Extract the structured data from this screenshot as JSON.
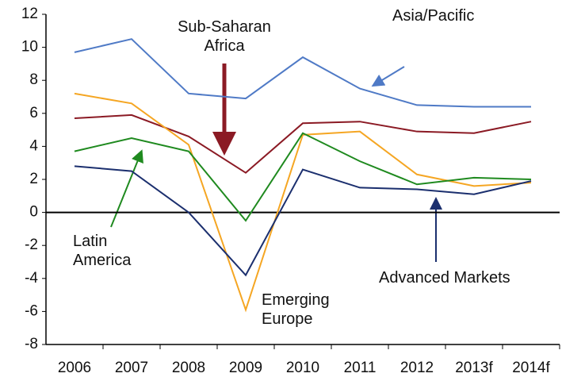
{
  "chart_data": {
    "type": "line",
    "categories": [
      "2006",
      "2007",
      "2008",
      "2009",
      "2010",
      "2011",
      "2012",
      "2013f",
      "2014f"
    ],
    "series": [
      {
        "name": "Asia/Pacific",
        "color": "#4f7ac6",
        "values": [
          9.7,
          10.5,
          7.2,
          6.9,
          9.4,
          7.5,
          6.5,
          6.4,
          6.4
        ]
      },
      {
        "name": "Sub-Saharan Africa",
        "color": "#8b1a24",
        "values": [
          5.7,
          5.9,
          4.6,
          2.4,
          5.4,
          5.5,
          4.9,
          4.8,
          5.5
        ]
      },
      {
        "name": "Emerging Europe",
        "color": "#f5a623",
        "values": [
          7.2,
          6.6,
          4.1,
          -5.9,
          4.7,
          4.9,
          2.3,
          1.6,
          1.8
        ]
      },
      {
        "name": "Latin America",
        "color": "#1f8a1f",
        "values": [
          3.7,
          4.5,
          3.7,
          -0.5,
          4.8,
          3.1,
          1.7,
          2.1,
          2.0
        ]
      },
      {
        "name": "Advanced Markets",
        "color": "#1b2f6e",
        "values": [
          2.8,
          2.5,
          0.0,
          -3.8,
          2.6,
          1.5,
          1.4,
          1.1,
          1.9
        ]
      }
    ],
    "ylim": [
      -8,
      12
    ],
    "yticks": [
      -8,
      -6,
      -4,
      -2,
      0,
      2,
      4,
      6,
      8,
      10,
      12
    ],
    "grid": false
  }
}
